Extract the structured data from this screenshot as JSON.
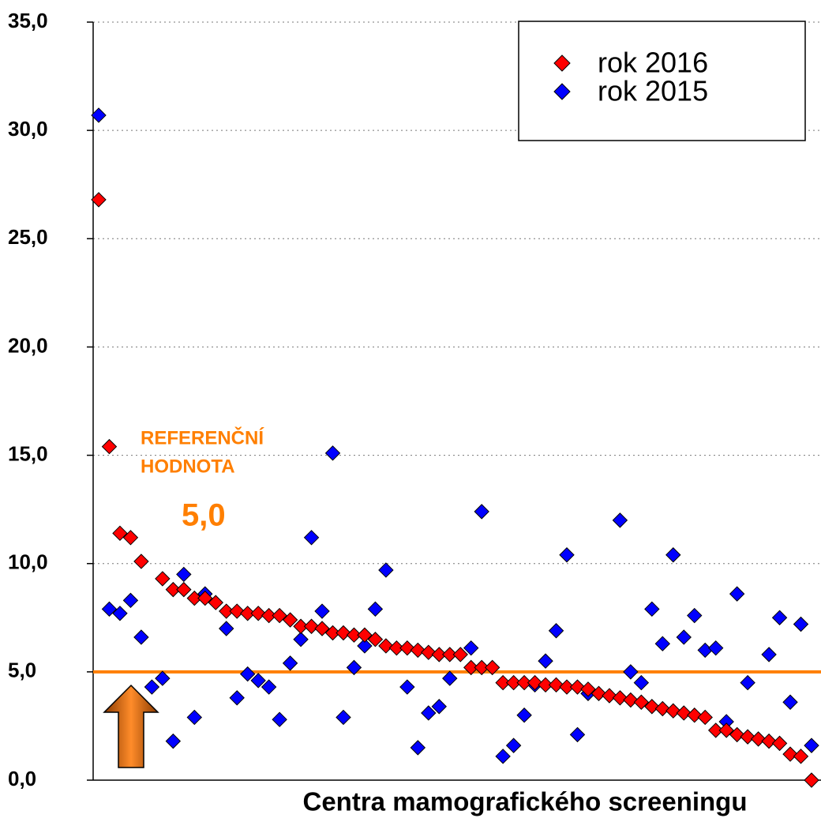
{
  "chart_data": {
    "type": "scatter",
    "x_label": "Centra mamografického screeningu",
    "categories": [
      null,
      null,
      null,
      null,
      null,
      null,
      null,
      null,
      null,
      null,
      null,
      null,
      null,
      null,
      null,
      null,
      null,
      null,
      null,
      null,
      null,
      null,
      null,
      null,
      null,
      null,
      null,
      null,
      null,
      null,
      null,
      null,
      null,
      null,
      null,
      null,
      null,
      null,
      null,
      null,
      null,
      null,
      null,
      null,
      null,
      null,
      null,
      null,
      null,
      null,
      null,
      null,
      null,
      null,
      null,
      null,
      null,
      null,
      null,
      null,
      null,
      null,
      null,
      null,
      null,
      null,
      null,
      null
    ],
    "series": [
      {
        "name": "rok 2016",
        "color": "#ff0000",
        "values": [
          26.8,
          15.4,
          11.4,
          11.2,
          10.1,
          null,
          9.3,
          8.8,
          8.8,
          8.4,
          8.4,
          8.2,
          7.8,
          7.8,
          7.7,
          7.7,
          7.6,
          7.6,
          7.4,
          7.1,
          7.1,
          7.0,
          6.8,
          6.8,
          6.7,
          6.7,
          6.5,
          6.2,
          6.1,
          6.1,
          6.0,
          5.9,
          5.8,
          5.8,
          5.8,
          5.2,
          5.2,
          5.2,
          4.5,
          4.5,
          4.5,
          4.5,
          4.4,
          4.4,
          4.3,
          4.3,
          4.2,
          4.0,
          3.9,
          3.8,
          3.7,
          3.6,
          3.4,
          3.3,
          3.2,
          3.1,
          3.0,
          2.9,
          2.3,
          2.3,
          2.1,
          2.0,
          1.9,
          1.8,
          1.7,
          1.2,
          1.1,
          0.0
        ]
      },
      {
        "name": "rok 2015",
        "color": "#0000ff",
        "values": [
          30.7,
          7.9,
          7.7,
          8.3,
          6.6,
          4.3,
          4.7,
          1.8,
          9.5,
          2.9,
          8.6,
          null,
          7.0,
          3.8,
          4.9,
          4.6,
          4.3,
          2.8,
          5.4,
          6.5,
          11.2,
          7.8,
          15.1,
          2.9,
          5.2,
          6.2,
          7.9,
          9.7,
          null,
          4.3,
          1.5,
          3.1,
          3.4,
          4.7,
          null,
          6.1,
          12.4,
          null,
          1.1,
          1.6,
          3.0,
          4.4,
          5.5,
          6.9,
          10.4,
          2.1,
          4.0,
          null,
          null,
          12.0,
          5.0,
          4.5,
          7.9,
          6.3,
          10.4,
          6.6,
          7.6,
          6.0,
          6.1,
          2.7,
          8.6,
          4.5,
          null,
          5.8,
          7.5,
          3.6,
          7.2,
          1.6
        ]
      }
    ],
    "reference_line": {
      "value": 5,
      "label": "5,0",
      "color": "#ff7f00",
      "text": [
        "REFERENČNÍ",
        "HODNOTA"
      ]
    },
    "ylim": [
      0,
      35
    ],
    "yticks": [
      {
        "value": 0,
        "label": "0,0"
      },
      {
        "value": 5,
        "label": "5,0"
      },
      {
        "value": 10,
        "label": "10,0"
      },
      {
        "value": 15,
        "label": "15,0"
      },
      {
        "value": 20,
        "label": "20,0"
      },
      {
        "value": 25,
        "label": "25,0"
      },
      {
        "value": 30,
        "label": "30,0"
      },
      {
        "value": 35,
        "label": "35,0"
      }
    ],
    "grid": true,
    "legend": "upper right"
  }
}
